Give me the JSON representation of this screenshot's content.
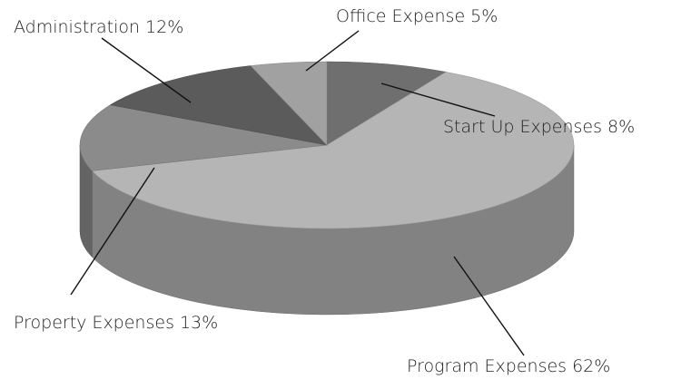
{
  "chart_data": {
    "type": "pie3d",
    "categories": [
      "Start Up Expenses",
      "Program Expenses",
      "Property Expenses",
      "Administration",
      "Office Expense"
    ],
    "values": [
      8,
      62,
      13,
      12,
      5
    ],
    "value_labels": [
      "8%",
      "62%",
      "13%",
      "12%",
      "5%"
    ],
    "colors": [
      "#6f6f6f",
      "#b5b5b5",
      "#8b8b8b",
      "#5b5b5b",
      "#a1a1a1"
    ]
  }
}
